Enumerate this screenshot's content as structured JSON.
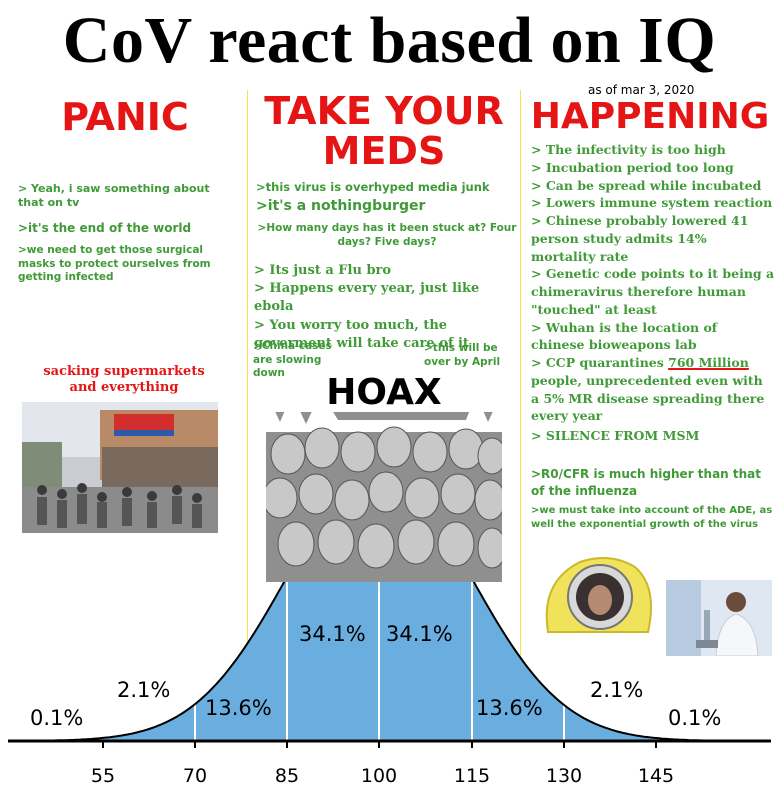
{
  "title": "CoV react based on IQ",
  "date_note": "as of mar 3, 2020",
  "headings": {
    "left": "PANIC",
    "middle_line1": "TAKE YOUR",
    "middle_line2": "MEDS",
    "right": "HAPPENING"
  },
  "panic_quotes": [
    "> Yeah, i saw something about that on tv",
    ">it's the end of the world",
    ">we need to get those surgical masks to protect ourselves from getting infected"
  ],
  "panic_caption": "sacking supermarkets and everything",
  "meds_quotes": {
    "q1": ">this virus is overhyped media junk",
    "q2": ">it's a nothingburger",
    "q3": ">How many days has it been stuck at? Four days? Five days?",
    "q4": "> Its just a Flu bro",
    "q5": "> Happens every year, just like ebola",
    "q6": "> You worry too much, the goverment will take care of it",
    "q7": ">China cases are slowing down",
    "q8": ">this will be over by April"
  },
  "hoax_label": "HOAX",
  "happening_quotes": {
    "h1": "> The infectivity is too high",
    "h2": "> Incubation period too long",
    "h3": "> Can be spread while incubated",
    "h4": "> Lowers immune system reaction",
    "h5": "> Chinese probably lowered 41 person study admits 14% mortality rate",
    "h6": "> Genetic code points to it being a chimeravirus therefore human \"touched\" at least",
    "h7": "> Wuhan is the location of chinese bioweapons lab",
    "h8_pre": "> CCP quarantines ",
    "h8_num": "760 Million",
    "h8_post": " people, unprecedented even with a 5% MR disease spreading there every year",
    "h9": "> SILENCE FROM MSM",
    "h10": ">R0/CFR is much higher than that of the influenza",
    "h11": ">we must take into account of the ADE, as well the exponential growth of the virus"
  },
  "chart_data": {
    "type": "area",
    "x_ticks": [
      "55",
      "70",
      "85",
      "100",
      "115",
      "130",
      "145"
    ],
    "segment_labels": [
      "0.1%",
      "2.1%",
      "13.6%",
      "34.1%",
      "34.1%",
      "13.6%",
      "2.1%",
      "0.1%"
    ],
    "fill_color": "#6aaee0",
    "line_color": "#000000"
  }
}
